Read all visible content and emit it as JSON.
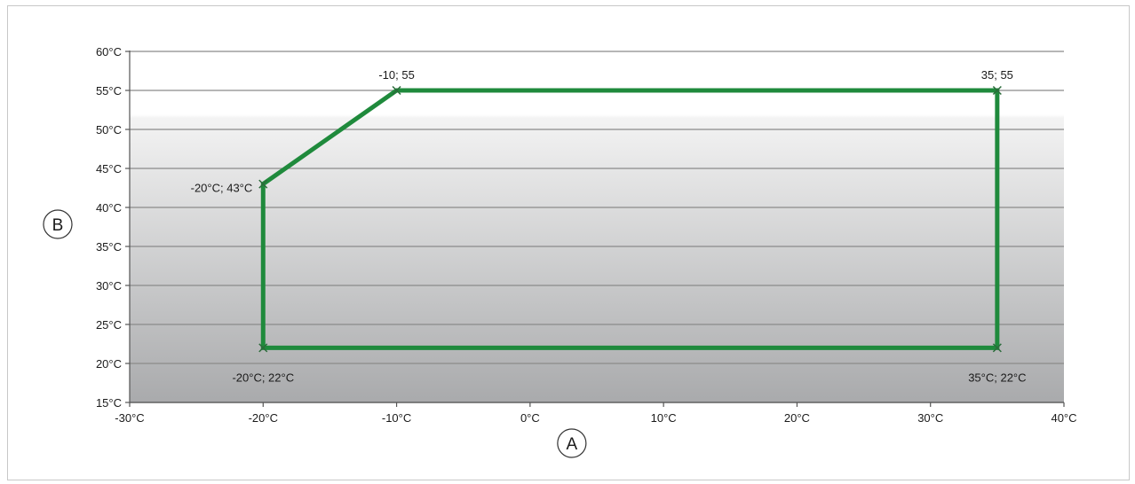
{
  "chart_data": {
    "type": "line",
    "title": "",
    "xlabel": "A",
    "ylabel": "B",
    "xlim": [
      -30,
      40
    ],
    "ylim": [
      15,
      60
    ],
    "x_ticks": [
      {
        "value": -30,
        "label": "-30°C"
      },
      {
        "value": -20,
        "label": "-20°C"
      },
      {
        "value": -10,
        "label": "-10°C"
      },
      {
        "value": 0,
        "label": "0°C"
      },
      {
        "value": 10,
        "label": "10°C"
      },
      {
        "value": 20,
        "label": "20°C"
      },
      {
        "value": 30,
        "label": "30°C"
      },
      {
        "value": 40,
        "label": "40°C"
      }
    ],
    "y_ticks": [
      {
        "value": 15,
        "label": "15°C"
      },
      {
        "value": 20,
        "label": "20°C"
      },
      {
        "value": 25,
        "label": "25°C"
      },
      {
        "value": 30,
        "label": "30°C"
      },
      {
        "value": 35,
        "label": "35°C"
      },
      {
        "value": 40,
        "label": "40°C"
      },
      {
        "value": 45,
        "label": "45°C"
      },
      {
        "value": 50,
        "label": "50°C"
      },
      {
        "value": 55,
        "label": "55°C"
      },
      {
        "value": 60,
        "label": "60°C"
      }
    ],
    "grid": "horizontal",
    "closed": true,
    "series": [
      {
        "color": "#1f8a3c",
        "points": [
          {
            "x": -20,
            "y": 22,
            "label": "-20°C; 22°C",
            "label_pos": "below"
          },
          {
            "x": -20,
            "y": 43,
            "label": "-20°C; 43°C",
            "label_pos": "left"
          },
          {
            "x": -10,
            "y": 55,
            "label": "-10; 55",
            "label_pos": "above"
          },
          {
            "x": 35,
            "y": 55,
            "label": "35; 55",
            "label_pos": "above"
          },
          {
            "x": 35,
            "y": 22,
            "label": "35°C; 22°C",
            "label_pos": "below"
          }
        ]
      }
    ],
    "colors": {
      "line": "#1f8a3c",
      "grid": "#8a8a8a",
      "axis": "#555555",
      "plot_top": "#ffffff",
      "plot_bottom": "#a9aaac"
    }
  }
}
